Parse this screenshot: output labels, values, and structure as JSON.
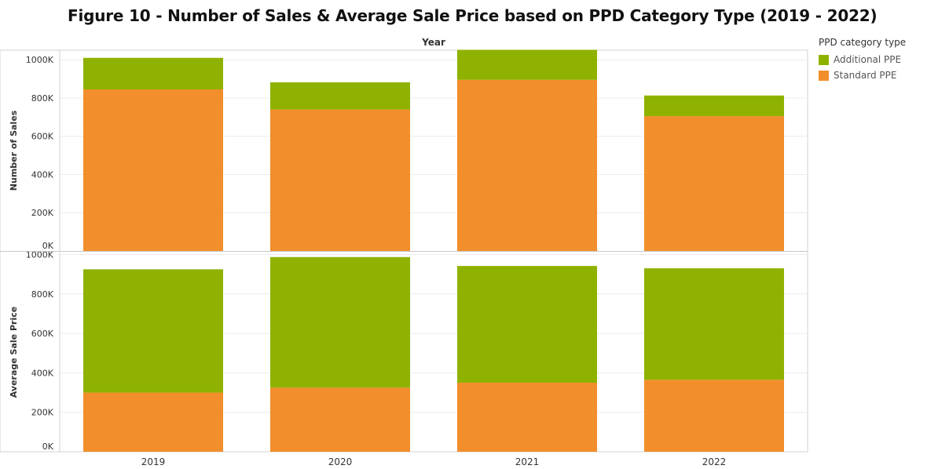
{
  "title": "Figure 10 - Number of Sales & Average Sale Price based on PPD Category Type (2019 - 2022)",
  "legend": {
    "title": "PPD category type",
    "items": [
      {
        "label": "Additional PPE",
        "color": "#8FB200"
      },
      {
        "label": "Standard PPE",
        "color": "#F28E2B"
      }
    ]
  },
  "chart_data": [
    {
      "type": "bar",
      "stacked": true,
      "xlabel": "Year",
      "ylabel": "Number of Sales",
      "categories": [
        "2019",
        "2020",
        "2021",
        "2022"
      ],
      "ylim": [
        0,
        1050000
      ],
      "yticks": [
        "0K",
        "200K",
        "400K",
        "600K",
        "800K",
        "1000K"
      ],
      "series": [
        {
          "name": "Standard PPE",
          "color": "#F28E2B",
          "values": [
            845000,
            740000,
            895000,
            705000
          ]
        },
        {
          "name": "Additional PPE",
          "color": "#8FB200",
          "values": [
            165000,
            142000,
            157000,
            108000
          ]
        }
      ]
    },
    {
      "type": "bar",
      "stacked": true,
      "xlabel": "",
      "ylabel": "Average Sale Price",
      "categories": [
        "2019",
        "2020",
        "2021",
        "2022"
      ],
      "ylim": [
        0,
        1010000
      ],
      "yticks": [
        "0K",
        "200K",
        "400K",
        "600K",
        "800K",
        "1000K"
      ],
      "series": [
        {
          "name": "Standard PPE",
          "color": "#F28E2B",
          "values": [
            300000,
            325000,
            350000,
            365000
          ]
        },
        {
          "name": "Additional PPE",
          "color": "#8FB200",
          "values": [
            625000,
            662000,
            592000,
            565000
          ]
        }
      ]
    }
  ]
}
